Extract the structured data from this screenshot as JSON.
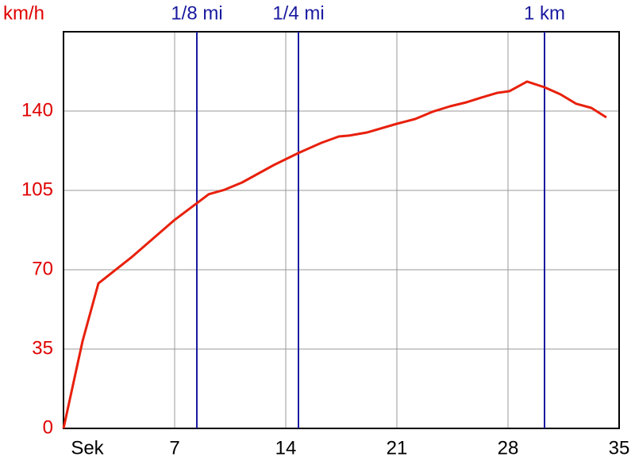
{
  "chart_data": {
    "type": "line",
    "y_label": "km/h",
    "x_label": "Sek",
    "x": [
      0,
      1.2,
      2.2,
      4.25,
      7,
      9.15,
      10.15,
      11.25,
      13.25,
      14.8,
      16.25,
      17.35,
      18,
      19.15,
      21,
      22.15,
      23.25,
      24.35,
      25.4,
      26.35,
      27.3,
      28.1,
      29.2,
      30.3,
      31.3,
      32.3,
      33.25,
      34.2
    ],
    "values": [
      0,
      38.5,
      64,
      75.3,
      92,
      103.3,
      105.3,
      108.5,
      116.2,
      121.5,
      126,
      128.8,
      129.2,
      130.6,
      134.4,
      136.5,
      139.7,
      142.1,
      143.9,
      146,
      148,
      148.8,
      153,
      150.5,
      147.4,
      143.2,
      141.4,
      137.2
    ],
    "color": "#e8200c",
    "xlim": [
      0,
      35
    ],
    "xticks": [
      7,
      14,
      21,
      28,
      35
    ],
    "ylim": [
      0,
      175
    ],
    "yticks": [
      0,
      35,
      70,
      105,
      140
    ],
    "grid": true,
    "axis_color": "#e00000",
    "markers": [
      {
        "label": "1/8 mi",
        "x": 8.4
      },
      {
        "label": "1/4 mi",
        "x": 14.8
      },
      {
        "label": "1 km",
        "x": 30.3
      }
    ],
    "marker_color": "#1a1aa0"
  }
}
